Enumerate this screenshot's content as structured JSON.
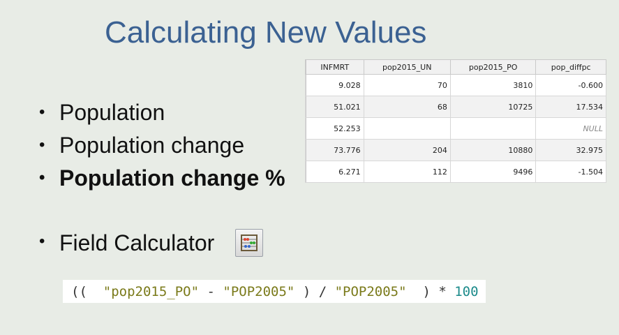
{
  "slide": {
    "title": "Calculating New Values",
    "bullets": [
      "Population",
      "Population change",
      "Population change %"
    ],
    "field_calculator_label": "Field Calculator",
    "field_calculator_icon": "abacus-icon"
  },
  "table": {
    "columns": [
      "INFMRT",
      "pop2015_UN",
      "pop2015_PO",
      "pop_diffpc"
    ],
    "rows": [
      [
        "9.028",
        "70",
        "3810",
        "-0.600"
      ],
      [
        "51.021",
        "68",
        "10725",
        "17.534"
      ],
      [
        "52.253",
        "",
        "",
        "NULL"
      ],
      [
        "73.776",
        "204",
        "10880",
        "32.975"
      ],
      [
        "6.271",
        "112",
        "9496",
        "-1.504"
      ]
    ]
  },
  "expression": {
    "open": "((",
    "field1": "\"pop2015_PO\"",
    "minus": "-",
    "field2": "\"POP2005\"",
    "close_div": ") /",
    "field3": "\"POP2005\"",
    "close_mul": ") *",
    "number": "100"
  }
}
